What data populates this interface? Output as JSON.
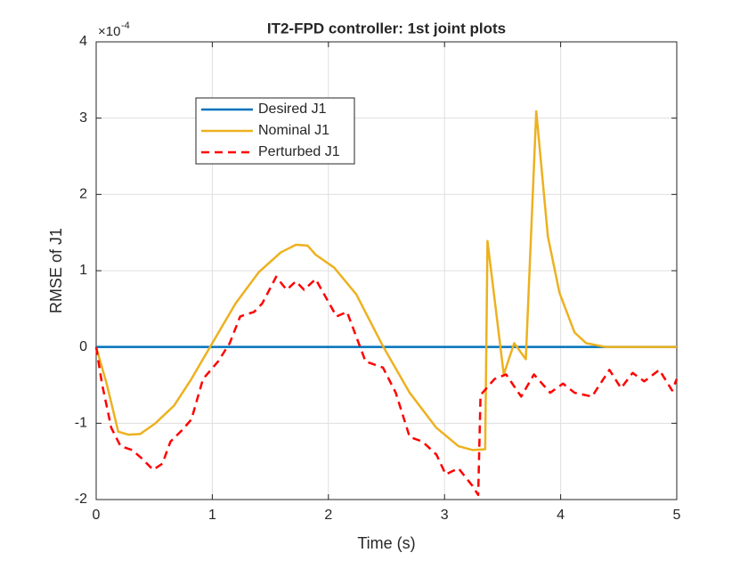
{
  "chart_data": {
    "type": "line",
    "title": "IT2-FPD controller: 1st joint plots",
    "x_label": "Time (s)",
    "y_label": "RMSE of J1",
    "y_multiplier_base": "×10",
    "y_multiplier_exponent": "-4",
    "xlim": [
      0,
      5
    ],
    "ylim": [
      -2,
      4
    ],
    "xticks": [
      0,
      1,
      2,
      3,
      4,
      5
    ],
    "yticks": [
      -2,
      -1,
      0,
      1,
      2,
      3,
      4
    ],
    "grid": true,
    "legend": "upper left",
    "series": [
      {
        "name": "Desired J1",
        "color": "#0072BD",
        "line_style": "solid",
        "x": [
          0,
          5
        ],
        "values": [
          0,
          0
        ]
      },
      {
        "name": "Nominal J1",
        "color": "#EDB120",
        "line_style": "solid",
        "x": [
          0,
          0.09,
          0.19,
          0.28,
          0.38,
          0.51,
          0.67,
          0.82,
          1.0,
          1.2,
          1.4,
          1.59,
          1.72,
          1.82,
          1.89,
          2.05,
          2.24,
          2.47,
          2.7,
          2.93,
          3.12,
          3.24,
          3.35,
          3.37,
          3.51,
          3.6,
          3.7,
          3.79,
          3.89,
          3.99,
          4.12,
          4.22,
          4.39,
          5
        ],
        "values": [
          0,
          -0.48,
          -1.11,
          -1.15,
          -1.14,
          -1.0,
          -0.77,
          -0.42,
          0.05,
          0.57,
          0.98,
          1.24,
          1.34,
          1.33,
          1.21,
          1.04,
          0.69,
          0.01,
          -0.6,
          -1.06,
          -1.3,
          -1.35,
          -1.34,
          1.39,
          -0.36,
          0.05,
          -0.16,
          3.09,
          1.45,
          0.71,
          0.19,
          0.05,
          0,
          0
        ]
      },
      {
        "name": "Perturbed J1",
        "color": "#FF0000",
        "line_style": "dashed",
        "x": [
          0,
          0.05,
          0.13,
          0.21,
          0.31,
          0.4,
          0.49,
          0.57,
          0.64,
          0.74,
          0.82,
          0.92,
          1.05,
          1.15,
          1.24,
          1.36,
          1.43,
          1.55,
          1.64,
          1.72,
          1.79,
          1.89,
          2.07,
          2.16,
          2.32,
          2.47,
          2.58,
          2.7,
          2.81,
          2.93,
          3.01,
          3.12,
          3.24,
          3.29,
          3.31,
          3.43,
          3.53,
          3.66,
          3.77,
          3.91,
          4.02,
          4.12,
          4.27,
          4.42,
          4.52,
          4.62,
          4.72,
          4.85,
          4.96,
          5
        ],
        "values": [
          0,
          -0.48,
          -1.06,
          -1.3,
          -1.35,
          -1.47,
          -1.61,
          -1.53,
          -1.24,
          -1.09,
          -0.95,
          -0.42,
          -0.19,
          0.05,
          0.4,
          0.46,
          0.57,
          0.92,
          0.75,
          0.86,
          0.75,
          0.89,
          0.4,
          0.46,
          -0.19,
          -0.27,
          -0.6,
          -1.18,
          -1.24,
          -1.41,
          -1.67,
          -1.59,
          -1.82,
          -1.94,
          -0.63,
          -0.42,
          -0.36,
          -0.65,
          -0.36,
          -0.6,
          -0.48,
          -0.6,
          -0.65,
          -0.3,
          -0.54,
          -0.34,
          -0.45,
          -0.3,
          -0.57,
          -0.42
        ]
      }
    ]
  }
}
